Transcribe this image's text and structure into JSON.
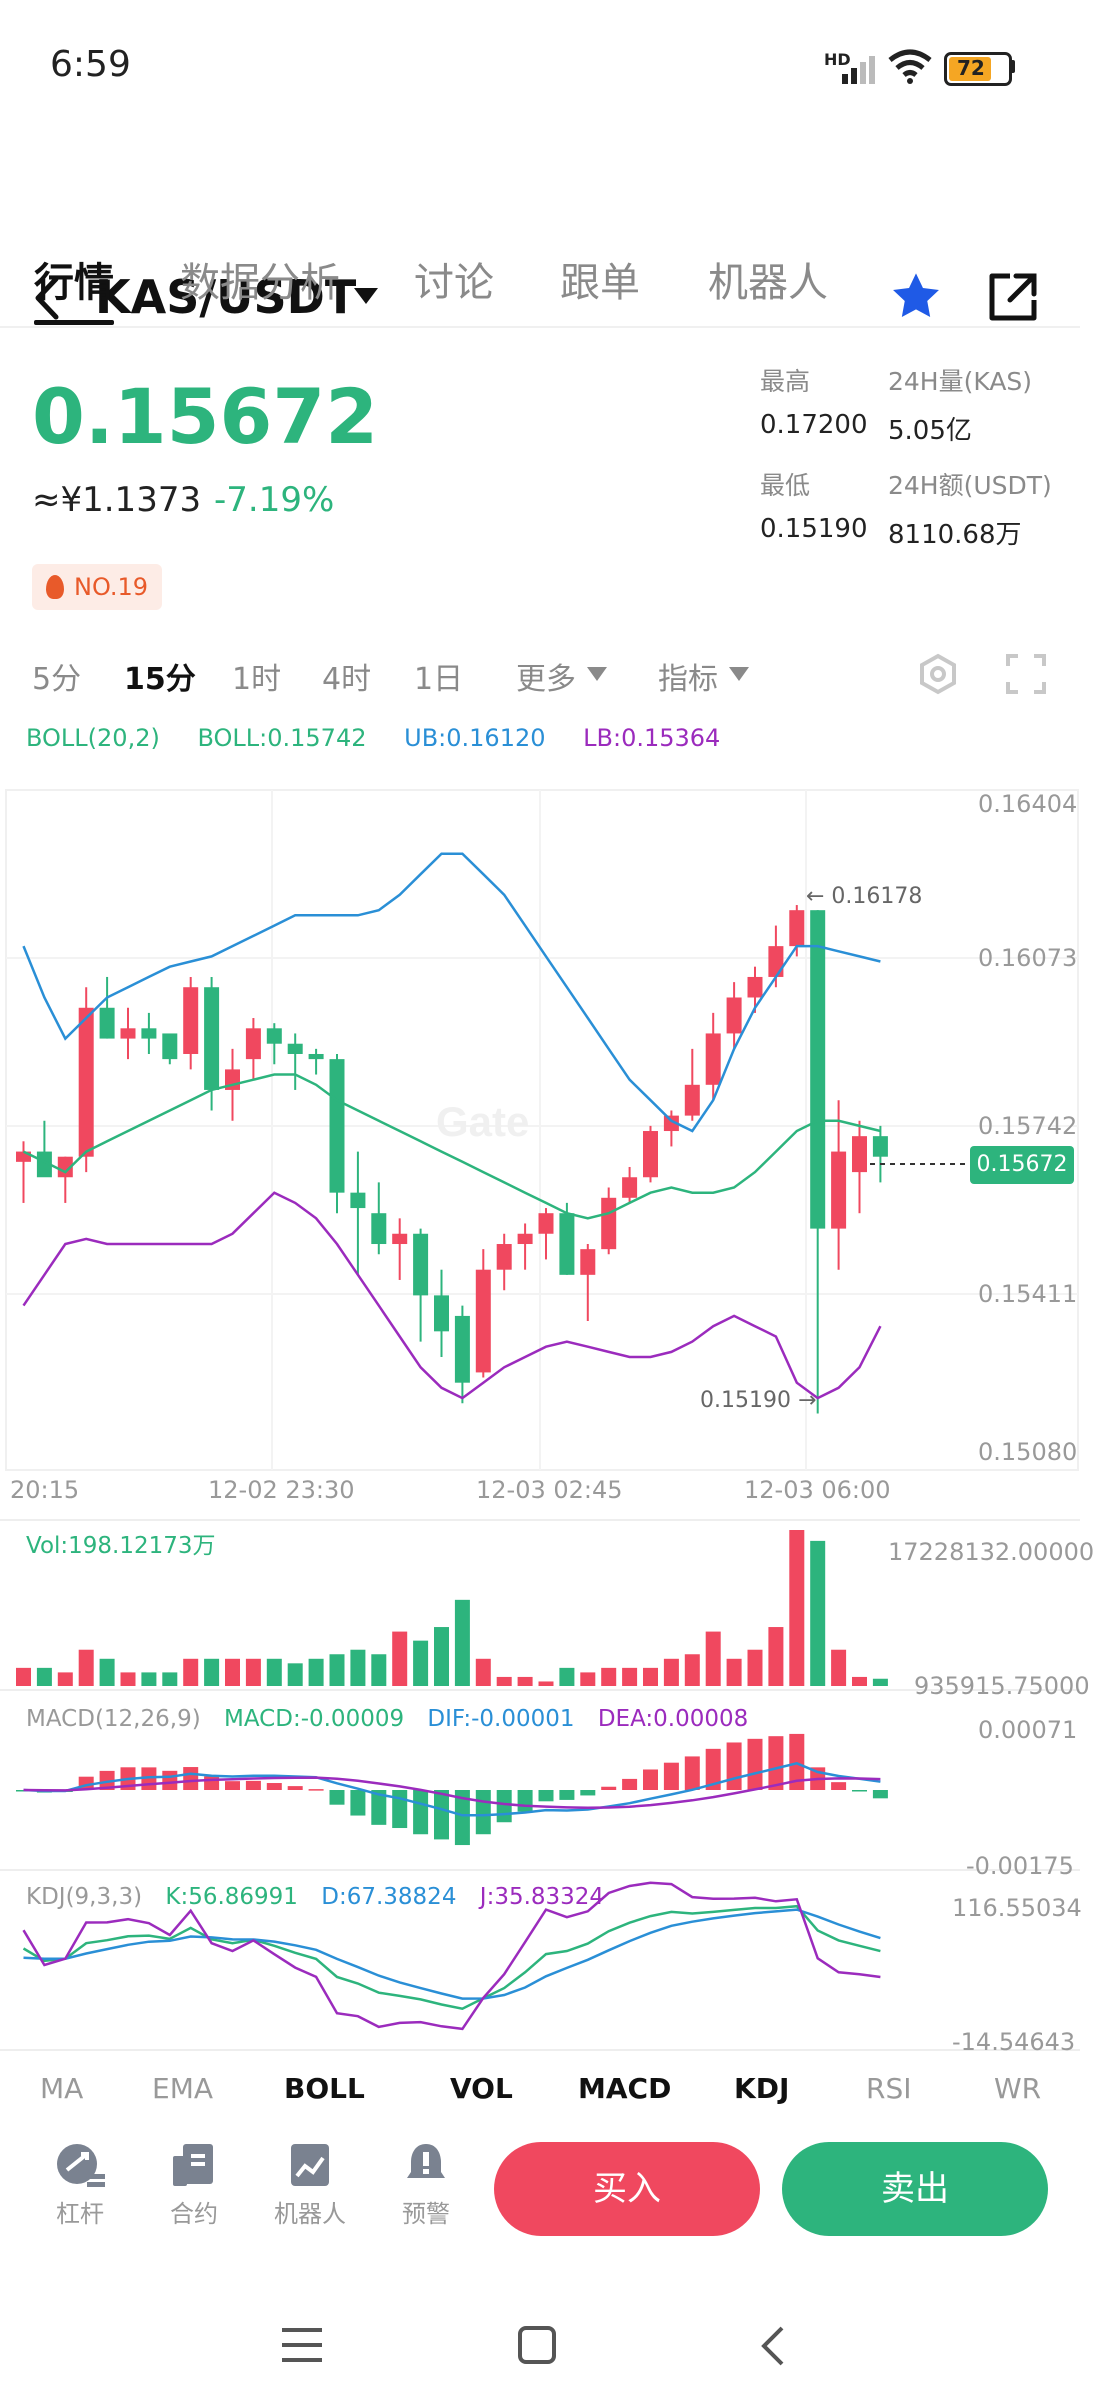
{
  "status_bar": {
    "time": "6:59",
    "battery": "72",
    "network": "HD"
  },
  "header": {
    "pair": "KAS/USDT"
  },
  "tabs": [
    "行情",
    "数据分析",
    "讨论",
    "跟单",
    "机器人"
  ],
  "ticker": {
    "price": "0.15672",
    "cny": "≈¥1.1373",
    "change": "-7.19%",
    "rank": "NO.19",
    "high_label": "最高",
    "high": "0.17200",
    "low_label": "最低",
    "low": "0.15190",
    "vol_label": "24H量(KAS)",
    "vol": "5.05亿",
    "amt_label": "24H额(USDT)",
    "amt": "8110.68万"
  },
  "timeframes": [
    "5分",
    "15分",
    "1时",
    "4时",
    "1日",
    "更多",
    "指标"
  ],
  "boll_legend": {
    "name": "BOLL(20,2)",
    "boll": "BOLL:0.15742",
    "ub": "UB:0.16120",
    "lb": "LB:0.15364"
  },
  "chart_axes": {
    "price_ticks": [
      "0.16404",
      "0.16073",
      "0.15742",
      "0.15411",
      "0.15080"
    ],
    "current_price_tag": "0.15672",
    "high_marker": "← 0.16178",
    "low_marker": "0.15190 →",
    "time_ticks": [
      "20:15",
      "12-02 23:30",
      "12-03 02:45",
      "12-03 06:00"
    ]
  },
  "volume": {
    "label": "Vol:198.12173万",
    "max": "17228132.00000",
    "min": "935915.75000"
  },
  "macd": {
    "name": "MACD(12,26,9)",
    "macd": "MACD:-0.00009",
    "dif": "DIF:-0.00001",
    "dea": "DEA:0.00008",
    "max": "0.00071",
    "min": "-0.00175"
  },
  "kdj": {
    "name": "KDJ(9,3,3)",
    "k": "K:56.86991",
    "d": "D:67.38824",
    "j": "J:35.83324",
    "max": "116.55034",
    "min": "-14.54643"
  },
  "indicator_tabs": [
    "MA",
    "EMA",
    "BOLL",
    "VOL",
    "MACD",
    "KDJ",
    "RSI",
    "WR"
  ],
  "actions": {
    "leverage": "杠杆",
    "contract": "合约",
    "robot": "机器人",
    "alert": "预警",
    "buy": "买入",
    "sell": "卖出"
  },
  "colors": {
    "up": "#f0485f",
    "down": "#2db47d",
    "ub": "#2a8fd6",
    "lb": "#9b2bbd",
    "mid": "#2db47d"
  },
  "chart_data": {
    "type": "candlestick",
    "ylim": [
      0.1508,
      0.16404
    ],
    "candles": [
      {
        "o": 0.1568,
        "h": 0.1572,
        "l": 0.156,
        "c": 0.157
      },
      {
        "o": 0.157,
        "h": 0.1576,
        "l": 0.1566,
        "c": 0.1565
      },
      {
        "o": 0.1565,
        "h": 0.1569,
        "l": 0.156,
        "c": 0.1569
      },
      {
        "o": 0.1569,
        "h": 0.1602,
        "l": 0.1566,
        "c": 0.1598
      },
      {
        "o": 0.1598,
        "h": 0.1604,
        "l": 0.1592,
        "c": 0.1592
      },
      {
        "o": 0.1592,
        "h": 0.1598,
        "l": 0.1588,
        "c": 0.1594
      },
      {
        "o": 0.1594,
        "h": 0.1597,
        "l": 0.1589,
        "c": 0.1592
      },
      {
        "o": 0.1593,
        "h": 0.1592,
        "l": 0.1587,
        "c": 0.1588
      },
      {
        "o": 0.1589,
        "h": 0.1604,
        "l": 0.1586,
        "c": 0.1602
      },
      {
        "o": 0.1602,
        "h": 0.1604,
        "l": 0.1578,
        "c": 0.1582
      },
      {
        "o": 0.1582,
        "h": 0.159,
        "l": 0.1576,
        "c": 0.1586
      },
      {
        "o": 0.1588,
        "h": 0.1596,
        "l": 0.1584,
        "c": 0.1594
      },
      {
        "o": 0.1594,
        "h": 0.1595,
        "l": 0.1587,
        "c": 0.1591
      },
      {
        "o": 0.1591,
        "h": 0.1593,
        "l": 0.1582,
        "c": 0.1589
      },
      {
        "o": 0.1589,
        "h": 0.159,
        "l": 0.1585,
        "c": 0.1588
      },
      {
        "o": 0.1588,
        "h": 0.1589,
        "l": 0.1558,
        "c": 0.1562
      },
      {
        "o": 0.1562,
        "h": 0.157,
        "l": 0.1546,
        "c": 0.1559
      },
      {
        "o": 0.1558,
        "h": 0.1564,
        "l": 0.155,
        "c": 0.1552
      },
      {
        "o": 0.1552,
        "h": 0.1557,
        "l": 0.1545,
        "c": 0.1554
      },
      {
        "o": 0.1554,
        "h": 0.1555,
        "l": 0.1533,
        "c": 0.1542
      },
      {
        "o": 0.1542,
        "h": 0.1547,
        "l": 0.153,
        "c": 0.1535
      },
      {
        "o": 0.1538,
        "h": 0.154,
        "l": 0.1521,
        "c": 0.1525
      },
      {
        "o": 0.1527,
        "h": 0.1551,
        "l": 0.1526,
        "c": 0.1547
      },
      {
        "o": 0.1547,
        "h": 0.1554,
        "l": 0.1543,
        "c": 0.1552
      },
      {
        "o": 0.1552,
        "h": 0.1556,
        "l": 0.1547,
        "c": 0.1554
      },
      {
        "o": 0.1554,
        "h": 0.1559,
        "l": 0.1549,
        "c": 0.1558
      },
      {
        "o": 0.1558,
        "h": 0.156,
        "l": 0.1546,
        "c": 0.1546
      },
      {
        "o": 0.1546,
        "h": 0.1552,
        "l": 0.1537,
        "c": 0.1551
      },
      {
        "o": 0.1551,
        "h": 0.1563,
        "l": 0.155,
        "c": 0.1561
      },
      {
        "o": 0.1561,
        "h": 0.1567,
        "l": 0.156,
        "c": 0.1565
      },
      {
        "o": 0.1565,
        "h": 0.1575,
        "l": 0.1564,
        "c": 0.1574
      },
      {
        "o": 0.1574,
        "h": 0.1578,
        "l": 0.1571,
        "c": 0.1577
      },
      {
        "o": 0.1577,
        "h": 0.159,
        "l": 0.1576,
        "c": 0.1583
      },
      {
        "o": 0.1583,
        "h": 0.1597,
        "l": 0.158,
        "c": 0.1593
      },
      {
        "o": 0.1593,
        "h": 0.1603,
        "l": 0.159,
        "c": 0.16
      },
      {
        "o": 0.16,
        "h": 0.1606,
        "l": 0.1597,
        "c": 0.1604
      },
      {
        "o": 0.1604,
        "h": 0.1614,
        "l": 0.1602,
        "c": 0.161
      },
      {
        "o": 0.161,
        "h": 0.1618,
        "l": 0.1608,
        "c": 0.1617
      },
      {
        "o": 0.1617,
        "h": 0.1617,
        "l": 0.1519,
        "c": 0.1555
      },
      {
        "o": 0.1555,
        "h": 0.158,
        "l": 0.1547,
        "c": 0.157
      },
      {
        "o": 0.1566,
        "h": 0.1576,
        "l": 0.1558,
        "c": 0.1573
      },
      {
        "o": 0.1573,
        "h": 0.1575,
        "l": 0.1564,
        "c": 0.1569
      }
    ],
    "boll_upper": [
      0.161,
      0.16,
      0.1592,
      0.1596,
      0.16,
      0.1602,
      0.1604,
      0.1606,
      0.1607,
      0.1608,
      0.161,
      0.1612,
      0.1614,
      0.1616,
      0.1616,
      0.1616,
      0.1616,
      0.1617,
      0.162,
      0.1624,
      0.1628,
      0.1628,
      0.1624,
      0.162,
      0.1614,
      0.1608,
      0.1602,
      0.1596,
      0.159,
      0.1584,
      0.158,
      0.1576,
      0.1574,
      0.158,
      0.159,
      0.1598,
      0.1604,
      0.161,
      0.161,
      0.1609,
      0.1608,
      0.1607
    ],
    "boll_mid": [
      0.157,
      0.1568,
      0.1566,
      0.157,
      0.1572,
      0.1574,
      0.1576,
      0.1578,
      0.158,
      0.1582,
      0.1583,
      0.1584,
      0.1585,
      0.1585,
      0.1583,
      0.158,
      0.1578,
      0.1576,
      0.1574,
      0.1572,
      0.157,
      0.1568,
      0.1566,
      0.1564,
      0.1562,
      0.156,
      0.1558,
      0.1557,
      0.1558,
      0.156,
      0.1562,
      0.1563,
      0.1562,
      0.1562,
      0.1563,
      0.1566,
      0.157,
      0.1574,
      0.1576,
      0.1576,
      0.1575,
      0.1574
    ],
    "boll_lower": [
      0.154,
      0.1546,
      0.1552,
      0.1553,
      0.1552,
      0.1552,
      0.1552,
      0.1552,
      0.1552,
      0.1552,
      0.1554,
      0.1558,
      0.1562,
      0.156,
      0.1557,
      0.1552,
      0.1546,
      0.154,
      0.1534,
      0.1528,
      0.1524,
      0.1522,
      0.1525,
      0.1528,
      0.153,
      0.1532,
      0.1533,
      0.1532,
      0.1531,
      0.153,
      0.153,
      0.1531,
      0.1533,
      0.1536,
      0.1538,
      0.1536,
      0.1534,
      0.1525,
      0.1522,
      0.1524,
      0.1528,
      0.1536
    ],
    "volume": [
      2.0,
      2.0,
      1.5,
      4.0,
      3.0,
      1.5,
      1.5,
      1.5,
      3.0,
      3.0,
      3.0,
      3.0,
      3.0,
      2.5,
      3.0,
      3.5,
      4.0,
      3.5,
      6.0,
      5.0,
      6.5,
      9.5,
      3.0,
      1.0,
      1.0,
      0.5,
      2.0,
      1.5,
      2.0,
      2.0,
      2.0,
      3.0,
      3.5,
      6.0,
      3.0,
      4.0,
      6.5,
      17.2,
      16.0,
      4.0,
      1.0,
      0.8
    ]
  }
}
